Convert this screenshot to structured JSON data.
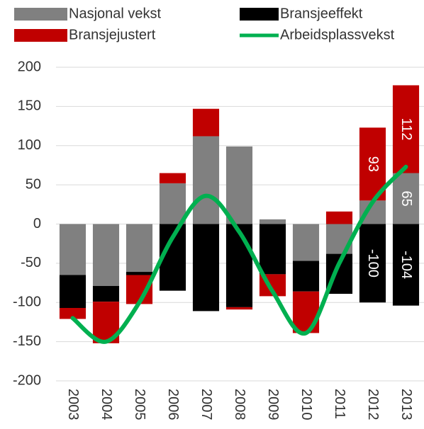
{
  "chart_data": {
    "type": "bar",
    "stacked": true,
    "categories": [
      "2003",
      "2004",
      "2005",
      "2006",
      "2007",
      "2008",
      "2009",
      "2010",
      "2011",
      "2012",
      "2013"
    ],
    "series": [
      {
        "name": "Nasjonal vekst",
        "color": "#808080",
        "values": [
          -65,
          -79,
          -61,
          52,
          112,
          99,
          6,
          -47,
          -38,
          30,
          65
        ],
        "value_labels": [
          null,
          null,
          null,
          null,
          null,
          null,
          null,
          null,
          null,
          null,
          "65"
        ]
      },
      {
        "name": "Bransjeeffekt",
        "color": "#000000",
        "values": [
          -42,
          -20,
          -4,
          -85,
          -111,
          -106,
          -64,
          -39,
          -51,
          -100,
          -104
        ],
        "value_labels": [
          null,
          null,
          null,
          null,
          null,
          null,
          null,
          null,
          null,
          "-100",
          "-104"
        ]
      },
      {
        "name": "Bransjejustert",
        "color": "#c00000",
        "values": [
          -14,
          -53,
          -37,
          13,
          35,
          -3,
          -28,
          -53,
          16,
          93,
          112
        ],
        "value_labels": [
          null,
          null,
          null,
          null,
          null,
          null,
          null,
          null,
          null,
          "93",
          "112"
        ]
      },
      {
        "name": "Arbeidsplassvekst",
        "type": "line",
        "color": "#00b050",
        "values": [
          -120,
          -150,
          -100,
          -17,
          36,
          -10,
          -86,
          -139,
          -50,
          28,
          73
        ]
      }
    ],
    "ylim": [
      -200,
      200
    ],
    "yticks": [
      -200,
      -150,
      -100,
      -50,
      0,
      50,
      100,
      150,
      200
    ],
    "grid": true,
    "legend": "top"
  }
}
